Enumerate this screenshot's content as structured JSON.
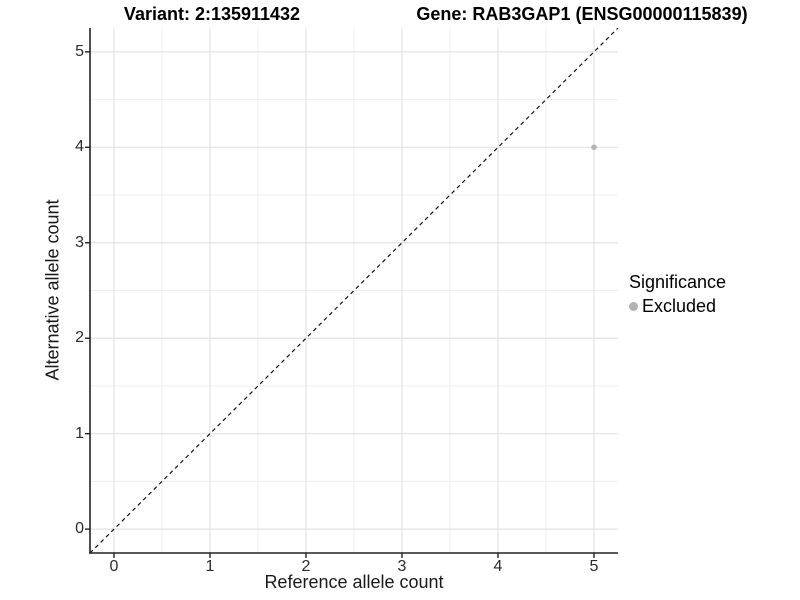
{
  "header": {
    "title_left": "Variant: 2:135911432",
    "title_right": "Gene: RAB3GAP1 (ENSG00000115839)"
  },
  "chart_data": {
    "type": "scatter",
    "title_left": "Variant: 2:135911432",
    "title_right": "Gene: RAB3GAP1 (ENSG00000115839)",
    "xlabel": "Reference allele count",
    "ylabel": "Alternative allele count",
    "xlim": [
      -0.25,
      5.25
    ],
    "ylim": [
      -0.25,
      5.25
    ],
    "x_ticks": [
      0,
      1,
      2,
      3,
      4,
      5
    ],
    "y_ticks": [
      0,
      1,
      2,
      3,
      4,
      5
    ],
    "x_minor_ticks": [
      0.5,
      1.5,
      2.5,
      3.5,
      4.5
    ],
    "y_minor_ticks": [
      0.5,
      1.5,
      2.5,
      3.5,
      4.5
    ],
    "grid": "major+minor",
    "reference_line": {
      "kind": "identity",
      "slope": 1,
      "intercept": 0,
      "style": "dashed",
      "color": "#111111"
    },
    "series": [
      {
        "name": "Excluded",
        "color": "#b3b3b3",
        "points": [
          {
            "x": 5,
            "y": 4
          }
        ]
      }
    ],
    "legend": {
      "title": "Significance",
      "position": "right",
      "items": [
        {
          "label": "Excluded",
          "color": "#b3b3b3"
        }
      ]
    },
    "colors": {
      "grid_major": "#e2e2e2",
      "grid_minor": "#eeeeee",
      "axis_line": "#222222",
      "point": "#b3b3b3"
    }
  }
}
